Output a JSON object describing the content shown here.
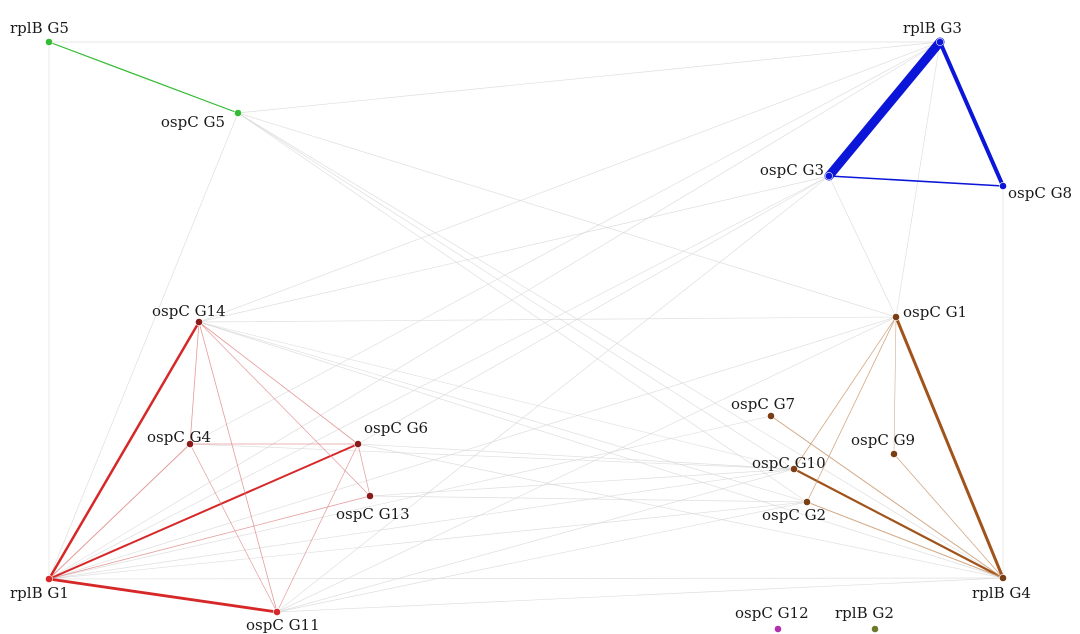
{
  "colors": {
    "background": "#ffffff",
    "gray_edge": "#d4d4d4",
    "green": "#33bb33",
    "blue": "#0b16d8",
    "red": "#d62828",
    "red_light": "#e08a8a",
    "brown": "#a0541c",
    "brown_light": "#c99a72",
    "dark_red_node": "#8b1a1a",
    "brown_node": "#7a3e12",
    "magenta": "#b030b0",
    "olive": "#6b7a2a"
  },
  "nodes": [
    {
      "id": "rplB_G5",
      "label": "rplB G5",
      "color": "green"
    },
    {
      "id": "ospC_G5",
      "label": "ospC G5",
      "color": "green"
    },
    {
      "id": "rplB_G3",
      "label": "rplB G3",
      "color": "blue"
    },
    {
      "id": "ospC_G3",
      "label": "ospC G3",
      "color": "blue"
    },
    {
      "id": "ospC_G8",
      "label": "ospC G8",
      "color": "blue"
    },
    {
      "id": "ospC_G14",
      "label": "ospC G14",
      "color": "dark_red_node"
    },
    {
      "id": "ospC_G4",
      "label": "ospC G4",
      "color": "dark_red_node"
    },
    {
      "id": "ospC_G6",
      "label": "ospC G6",
      "color": "dark_red_node"
    },
    {
      "id": "ospC_G13",
      "label": "ospC G13",
      "color": "dark_red_node"
    },
    {
      "id": "rplB_G1",
      "label": "rplB G1",
      "color": "red"
    },
    {
      "id": "ospC_G11",
      "label": "ospC G11",
      "color": "red"
    },
    {
      "id": "ospC_G1",
      "label": "ospC G1",
      "color": "brown_node"
    },
    {
      "id": "ospC_G7",
      "label": "ospC G7",
      "color": "brown_node"
    },
    {
      "id": "ospC_G9",
      "label": "ospC G9",
      "color": "brown_node"
    },
    {
      "id": "ospC_G10",
      "label": "ospC G10",
      "color": "brown_node"
    },
    {
      "id": "ospC_G2",
      "label": "ospC G2",
      "color": "brown_node"
    },
    {
      "id": "rplB_G4",
      "label": "rplB G4",
      "color": "brown_node"
    },
    {
      "id": "ospC_G12",
      "label": "ospC G12",
      "color": "magenta"
    },
    {
      "id": "rplB_G2",
      "label": "rplB G2",
      "color": "olive"
    }
  ],
  "edges": [
    {
      "from": "rplB_G5",
      "to": "ospC_G5",
      "color": "green",
      "width": 1.2
    },
    {
      "from": "rplB_G3",
      "to": "ospC_G3",
      "color": "blue",
      "width": 9
    },
    {
      "from": "rplB_G3",
      "to": "ospC_G8",
      "color": "blue",
      "width": 4
    },
    {
      "from": "ospC_G3",
      "to": "ospC_G8",
      "color": "blue",
      "width": 1.6
    },
    {
      "from": "rplB_G1",
      "to": "ospC_G14",
      "color": "red",
      "width": 2.5
    },
    {
      "from": "rplB_G1",
      "to": "ospC_G6",
      "color": "red",
      "width": 2
    },
    {
      "from": "rplB_G1",
      "to": "ospC_G11",
      "color": "red",
      "width": 2.8
    },
    {
      "from": "rplB_G1",
      "to": "ospC_G4",
      "color": "red_light",
      "width": 1
    },
    {
      "from": "rplB_G1",
      "to": "ospC_G13",
      "color": "red_light",
      "width": 0.8
    },
    {
      "from": "ospC_G14",
      "to": "ospC_G4",
      "color": "red_light",
      "width": 0.8
    },
    {
      "from": "ospC_G14",
      "to": "ospC_G6",
      "color": "red_light",
      "width": 0.8
    },
    {
      "from": "ospC_G14",
      "to": "ospC_G11",
      "color": "red_light",
      "width": 0.8
    },
    {
      "from": "ospC_G14",
      "to": "ospC_G13",
      "color": "red_light",
      "width": 0.7
    },
    {
      "from": "ospC_G4",
      "to": "ospC_G6",
      "color": "red_light",
      "width": 0.7
    },
    {
      "from": "ospC_G4",
      "to": "ospC_G11",
      "color": "red_light",
      "width": 0.7
    },
    {
      "from": "ospC_G6",
      "to": "ospC_G11",
      "color": "red_light",
      "width": 0.7
    },
    {
      "from": "ospC_G6",
      "to": "ospC_G13",
      "color": "red_light",
      "width": 0.7
    },
    {
      "from": "rplB_G4",
      "to": "ospC_G1",
      "color": "brown",
      "width": 3
    },
    {
      "from": "rplB_G4",
      "to": "ospC_G10",
      "color": "brown",
      "width": 2.2
    },
    {
      "from": "rplB_G4",
      "to": "ospC_G7",
      "color": "brown_light",
      "width": 1
    },
    {
      "from": "rplB_G4",
      "to": "ospC_G9",
      "color": "brown_light",
      "width": 0.8
    },
    {
      "from": "rplB_G4",
      "to": "ospC_G2",
      "color": "brown_light",
      "width": 1
    },
    {
      "from": "ospC_G1",
      "to": "ospC_G10",
      "color": "brown_light",
      "width": 0.8
    },
    {
      "from": "ospC_G1",
      "to": "ospC_G2",
      "color": "brown_light",
      "width": 0.8
    },
    {
      "from": "ospC_G1",
      "to": "ospC_G9",
      "color": "brown_light",
      "width": 0.6
    },
    {
      "from": "rplB_G5",
      "to": "rplB_G3",
      "color": "gray_edge",
      "width": 0.7
    },
    {
      "from": "rplB_G5",
      "to": "rplB_G1",
      "color": "gray_edge",
      "width": 0.7
    },
    {
      "from": "ospC_G5",
      "to": "rplB_G3",
      "color": "gray_edge",
      "width": 0.7
    },
    {
      "from": "ospC_G5",
      "to": "rplB_G1",
      "color": "gray_edge",
      "width": 0.7
    },
    {
      "from": "ospC_G5",
      "to": "ospC_G1",
      "color": "gray_edge",
      "width": 0.7
    },
    {
      "from": "ospC_G5",
      "to": "rplB_G4",
      "color": "gray_edge",
      "width": 0.7
    },
    {
      "from": "ospC_G5",
      "to": "ospC_G2",
      "color": "gray_edge",
      "width": 0.7
    },
    {
      "from": "ospC_G5",
      "to": "ospC_G10",
      "color": "gray_edge",
      "width": 0.7
    },
    {
      "from": "rplB_G3",
      "to": "ospC_G14",
      "color": "gray_edge",
      "width": 0.7
    },
    {
      "from": "rplB_G3",
      "to": "ospC_G1",
      "color": "gray_edge",
      "width": 0.7
    },
    {
      "from": "rplB_G3",
      "to": "rplB_G1",
      "color": "gray_edge",
      "width": 0.7
    },
    {
      "from": "rplB_G3",
      "to": "ospC_G4",
      "color": "gray_edge",
      "width": 0.7
    },
    {
      "from": "ospC_G3",
      "to": "rplB_G1",
      "color": "gray_edge",
      "width": 0.7
    },
    {
      "from": "ospC_G3",
      "to": "ospC_G11",
      "color": "gray_edge",
      "width": 0.7
    },
    {
      "from": "ospC_G3",
      "to": "ospC_G1",
      "color": "gray_edge",
      "width": 0.7
    },
    {
      "from": "ospC_G3",
      "to": "ospC_G14",
      "color": "gray_edge",
      "width": 0.7
    },
    {
      "from": "ospC_G3",
      "to": "ospC_G6",
      "color": "gray_edge",
      "width": 0.7
    },
    {
      "from": "ospC_G8",
      "to": "rplB_G4",
      "color": "gray_edge",
      "width": 0.7
    },
    {
      "from": "ospC_G14",
      "to": "ospC_G1",
      "color": "gray_edge",
      "width": 0.7
    },
    {
      "from": "ospC_G14",
      "to": "rplB_G4",
      "color": "gray_edge",
      "width": 0.7
    },
    {
      "from": "ospC_G14",
      "to": "ospC_G2",
      "color": "gray_edge",
      "width": 0.7
    },
    {
      "from": "ospC_G4",
      "to": "ospC_G10",
      "color": "gray_edge",
      "width": 0.7
    },
    {
      "from": "ospC_G6",
      "to": "rplB_G4",
      "color": "gray_edge",
      "width": 0.7
    },
    {
      "from": "ospC_G6",
      "to": "ospC_G10",
      "color": "gray_edge",
      "width": 0.7
    },
    {
      "from": "ospC_G13",
      "to": "ospC_G10",
      "color": "gray_edge",
      "width": 0.7
    },
    {
      "from": "ospC_G13",
      "to": "ospC_G2",
      "color": "gray_edge",
      "width": 0.7
    },
    {
      "from": "rplB_G1",
      "to": "ospC_G10",
      "color": "gray_edge",
      "width": 0.7
    },
    {
      "from": "rplB_G1",
      "to": "ospC_G7",
      "color": "gray_edge",
      "width": 0.7
    },
    {
      "from": "rplB_G1",
      "to": "ospC_G2",
      "color": "gray_edge",
      "width": 0.7
    },
    {
      "from": "rplB_G1",
      "to": "rplB_G4",
      "color": "gray_edge",
      "width": 0.7
    },
    {
      "from": "rplB_G1",
      "to": "ospC_G1",
      "color": "gray_edge",
      "width": 0.7
    },
    {
      "from": "ospC_G11",
      "to": "rplB_G4",
      "color": "gray_edge",
      "width": 0.7
    },
    {
      "from": "ospC_G11",
      "to": "ospC_G10",
      "color": "gray_edge",
      "width": 0.7
    },
    {
      "from": "ospC_G11",
      "to": "ospC_G1",
      "color": "gray_edge",
      "width": 0.7
    },
    {
      "from": "ospC_G11",
      "to": "ospC_G2",
      "color": "gray_edge",
      "width": 0.7
    },
    {
      "from": "ospC_G10",
      "to": "ospC_G14",
      "color": "gray_edge",
      "width": 0.6
    }
  ]
}
